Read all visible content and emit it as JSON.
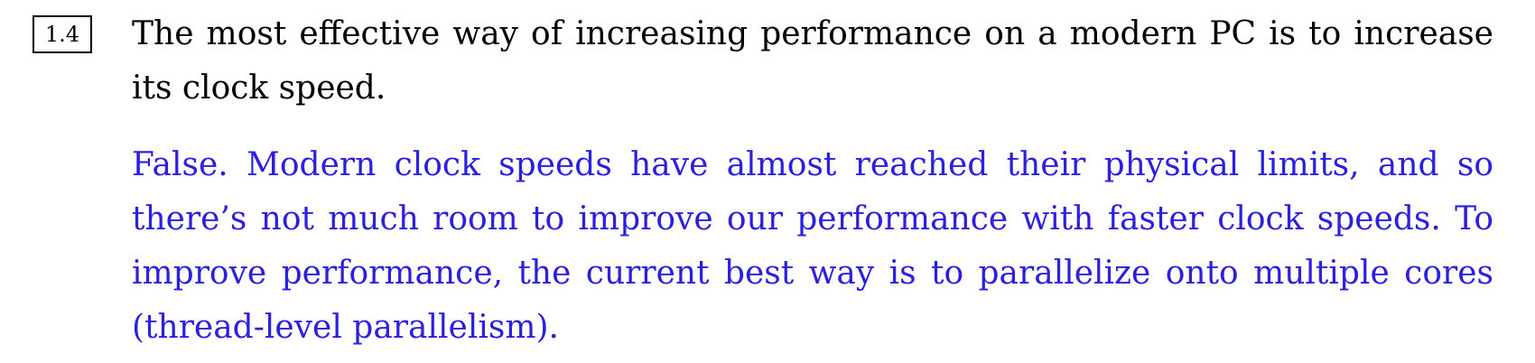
{
  "question": {
    "number": "1.4",
    "text": "The most effective way of increasing performance on a modern PC is to increase its clock speed."
  },
  "answer": {
    "text": "False. Modern clock speeds have almost reached their physical limits, and so there’s not much room to improve our performance with faster clock speeds. To improve performance, the current best way is to parallelize onto multiple cores (thread-level parallelism).",
    "color": "#2b1fe0"
  }
}
